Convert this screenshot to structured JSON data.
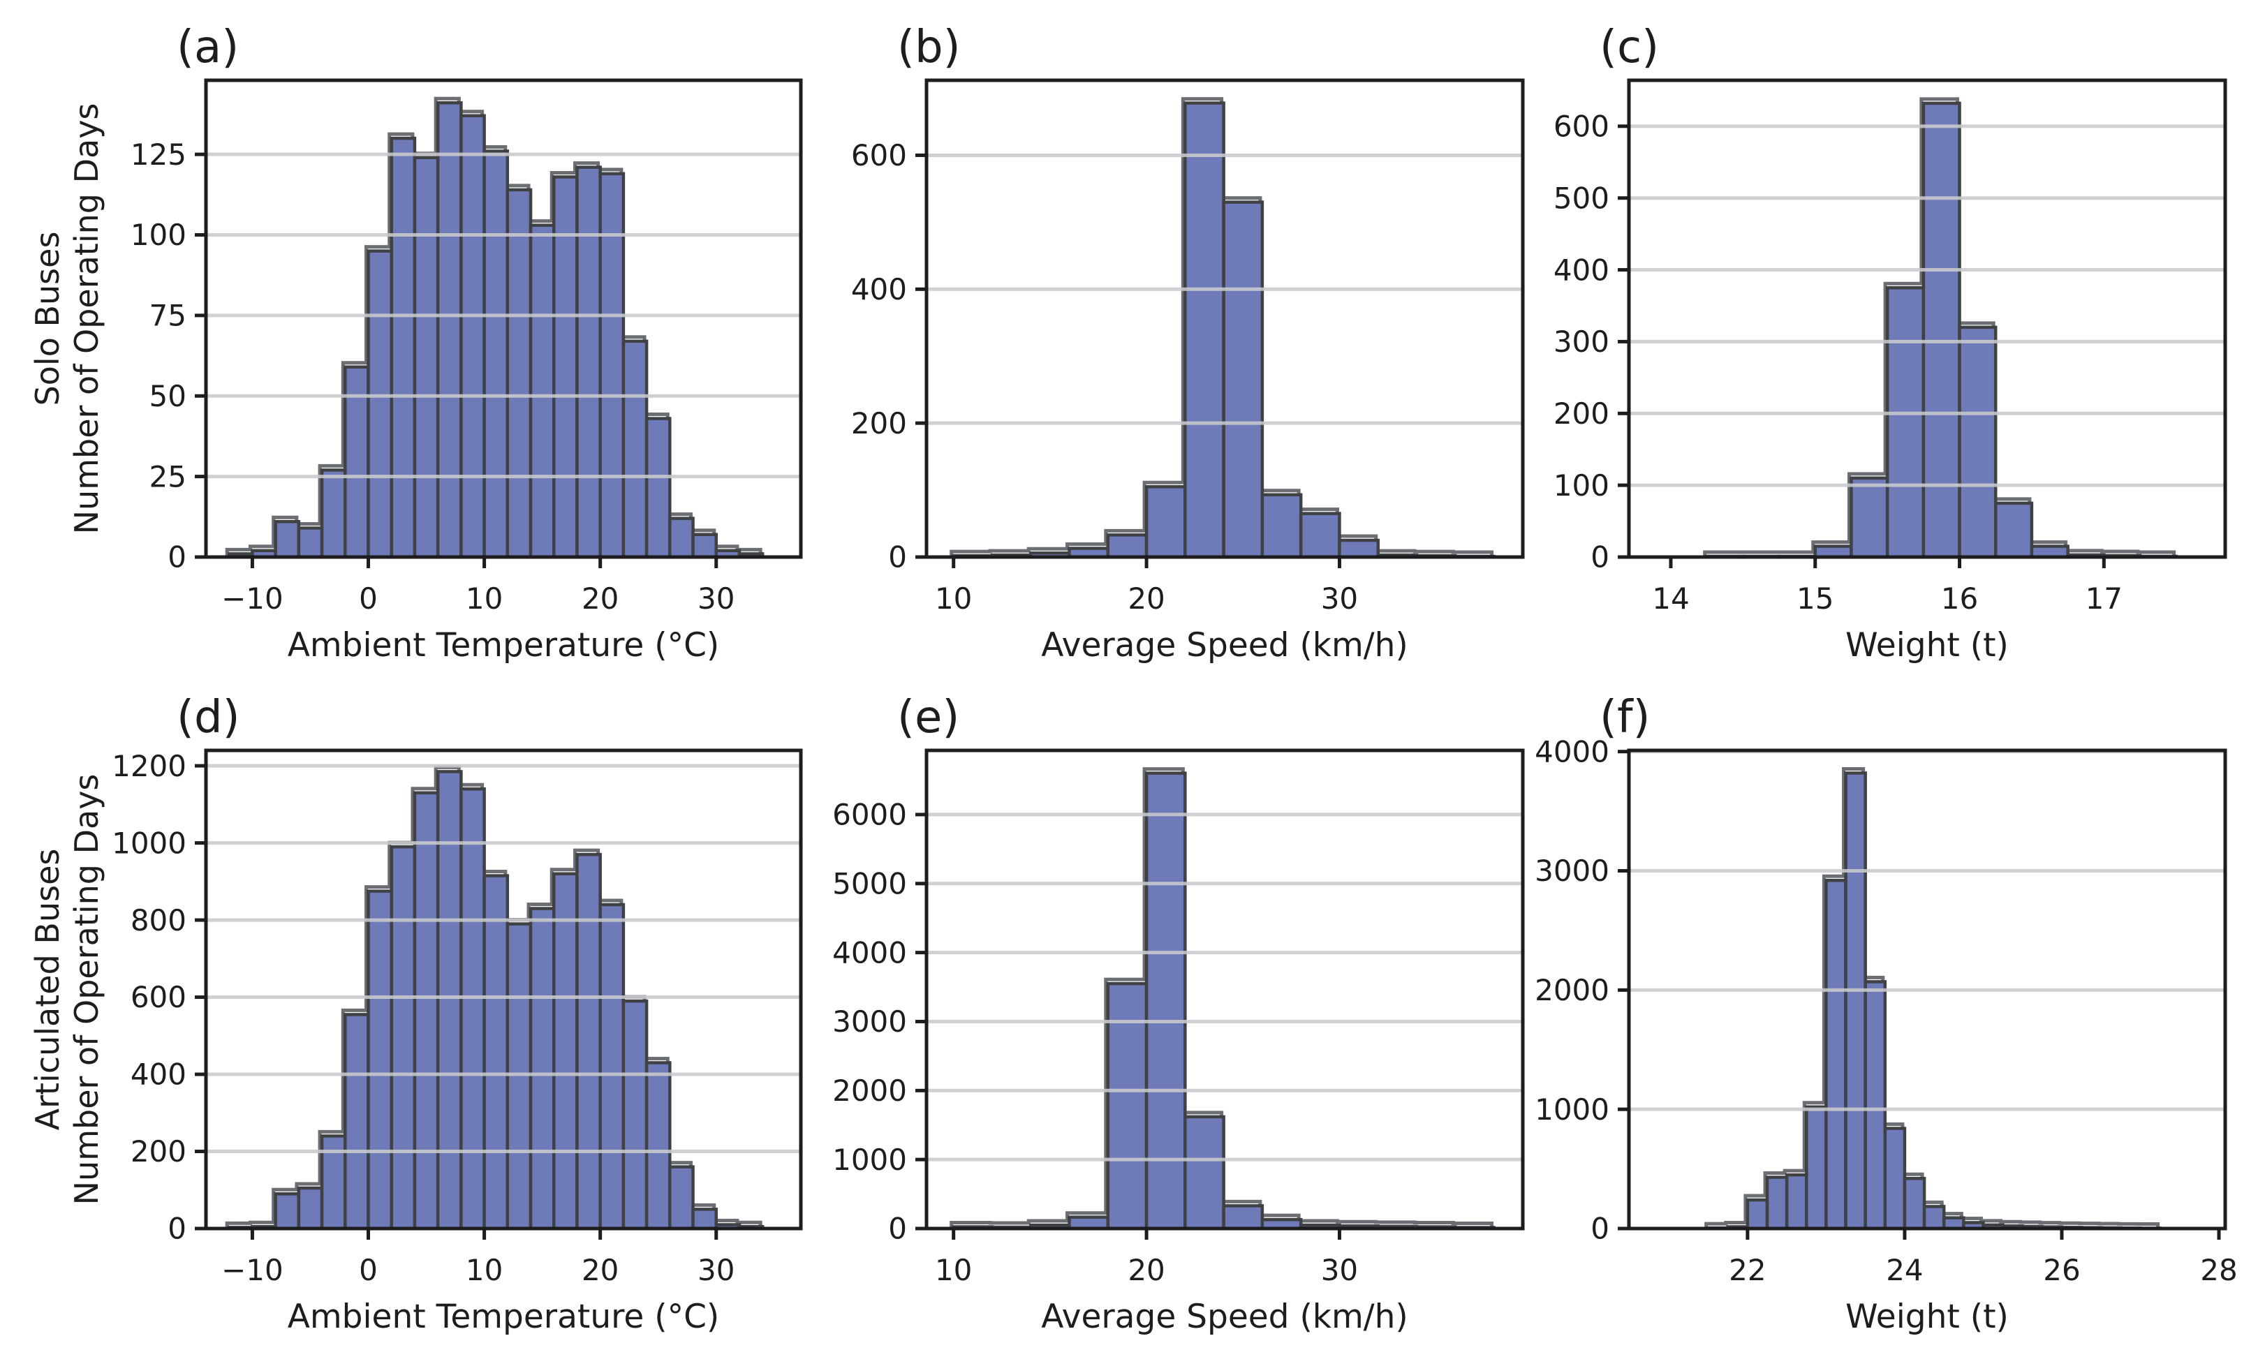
{
  "figure": {
    "background": "#ffffff",
    "description": "Six-panel histogram figure comparing Solo Buses (top row) and Articulated Buses (bottom row) over ambient temperature, average speed and weight"
  },
  "style": {
    "bar_fill": "#6F7AB8",
    "bar_edge": "#3F4145",
    "shadow_edge": "#6B6E73",
    "grid_color": "#C9CACD",
    "spine_color": "#1D1D1F",
    "text_color": "#1D1D1F"
  },
  "chart_data": [
    {
      "panel_label": "(a)",
      "type": "bar",
      "subtype": "histogram",
      "row_label_lines": [
        "Solo Buses",
        "Number of Operating Days"
      ],
      "xlabel": "Ambient Temperature (°C)",
      "ylabel": "Number of Operating Days",
      "bin_start": -12,
      "bin_width": 2,
      "values": [
        1,
        2,
        11,
        9,
        27,
        59,
        95,
        130,
        124,
        141,
        137,
        126,
        114,
        103,
        118,
        121,
        119,
        67,
        43,
        12,
        7,
        2,
        1
      ],
      "xlim": [
        -14,
        37.3
      ],
      "ylim": [
        0,
        148
      ],
      "xticks": [
        -10,
        0,
        10,
        20,
        30
      ],
      "yticks": [
        0,
        25,
        50,
        75,
        100,
        125
      ],
      "grid": "y",
      "legend": "none"
    },
    {
      "panel_label": "(b)",
      "type": "bar",
      "subtype": "histogram",
      "row_label_lines": [],
      "xlabel": "Average Speed (km/h)",
      "ylabel": "Number of Operating Days",
      "bin_start": 10,
      "bin_width": 2,
      "values": [
        2,
        3,
        6,
        13,
        33,
        105,
        678,
        530,
        93,
        65,
        25,
        3,
        2,
        1
      ],
      "xlim": [
        8.6,
        39.5
      ],
      "ylim": [
        0,
        712
      ],
      "xticks": [
        10,
        20,
        30
      ],
      "yticks": [
        0,
        200,
        400,
        600
      ],
      "grid": "y",
      "legend": "none"
    },
    {
      "panel_label": "(c)",
      "type": "bar",
      "subtype": "histogram",
      "row_label_lines": [],
      "xlabel": "Weight (t)",
      "ylabel": "Number of Operating Days",
      "bin_start": 14.25,
      "bin_width": 0.25,
      "values": [
        1,
        1,
        1,
        15,
        110,
        375,
        632,
        320,
        75,
        15,
        3,
        2,
        1
      ],
      "xlim": [
        13.71,
        17.84
      ],
      "ylim": [
        0,
        664
      ],
      "xticks": [
        14,
        15,
        16,
        17
      ],
      "yticks": [
        0,
        100,
        200,
        300,
        400,
        500,
        600
      ],
      "grid": "y",
      "legend": "none"
    },
    {
      "panel_label": "(d)",
      "type": "bar",
      "subtype": "histogram",
      "row_label_lines": [
        "Articulated Buses",
        "Number of Operating Days"
      ],
      "xlabel": "Ambient Temperature (°C)",
      "ylabel": "Number of Operating Days",
      "bin_start": -12,
      "bin_width": 2,
      "values": [
        3,
        5,
        90,
        105,
        240,
        555,
        875,
        990,
        1130,
        1185,
        1140,
        915,
        790,
        830,
        920,
        970,
        840,
        590,
        430,
        160,
        50,
        10,
        5
      ],
      "xlim": [
        -14,
        37.3
      ],
      "ylim": [
        0,
        1240
      ],
      "xticks": [
        -10,
        0,
        10,
        20,
        30
      ],
      "yticks": [
        0,
        200,
        400,
        600,
        800,
        1000,
        1200
      ],
      "grid": "y",
      "legend": "none"
    },
    {
      "panel_label": "(e)",
      "type": "bar",
      "subtype": "histogram",
      "row_label_lines": [],
      "xlabel": "Average Speed (km/h)",
      "ylabel": "Number of Operating Days",
      "bin_start": 10,
      "bin_width": 2,
      "values": [
        25,
        20,
        50,
        165,
        3550,
        6600,
        1620,
        330,
        130,
        50,
        38,
        32,
        25,
        15
      ],
      "xlim": [
        8.6,
        39.5
      ],
      "ylim": [
        0,
        6930
      ],
      "xticks": [
        10,
        20,
        30
      ],
      "yticks": [
        0,
        1000,
        2000,
        3000,
        4000,
        5000,
        6000
      ],
      "grid": "y",
      "legend": "none"
    },
    {
      "panel_label": "(f)",
      "type": "bar",
      "subtype": "histogram",
      "row_label_lines": [],
      "xlabel": "Weight (t)",
      "ylabel": "Number of Operating Days",
      "bin_start": 21.5,
      "bin_width": 0.25,
      "values": [
        5,
        15,
        240,
        430,
        450,
        1020,
        2920,
        3820,
        2070,
        840,
        420,
        185,
        90,
        50,
        30,
        22,
        18,
        14,
        10,
        8,
        6,
        4,
        3
      ],
      "xlim": [
        20.49,
        28.08
      ],
      "ylim": [
        0,
        4010
      ],
      "xticks": [
        22,
        24,
        26,
        28
      ],
      "yticks": [
        0,
        1000,
        2000,
        3000,
        4000
      ],
      "grid": "y",
      "legend": "none"
    }
  ]
}
